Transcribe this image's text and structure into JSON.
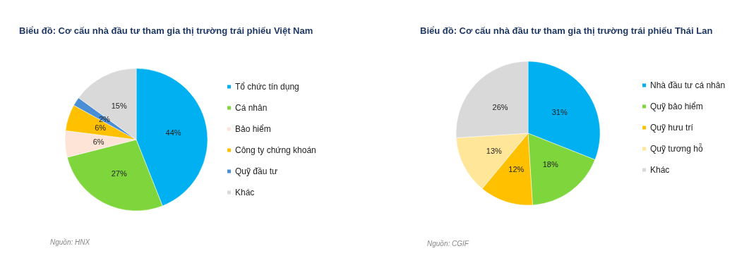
{
  "chart_data": [
    {
      "type": "pie",
      "title": "Biểu đồ: Cơ cấu nhà đầu tư tham gia thị trường trái phiếu Việt Nam",
      "categories": [
        "Tổ chức tín dụng",
        "Cá nhân",
        "Bảo hiểm",
        "Công ty chứng khoán",
        "Quỹ đầu tư",
        "Khác"
      ],
      "values": [
        44,
        27,
        6,
        6,
        2,
        15
      ],
      "value_labels": [
        "44%",
        "27%",
        "6%",
        "6%",
        "2%",
        "15%"
      ],
      "colors": [
        "#00b0f0",
        "#7ed63c",
        "#fde4d6",
        "#ffc000",
        "#4a8fd6",
        "#d9d9d9"
      ],
      "legend": "right",
      "annotations": [
        "Nguồn: HNX"
      ]
    },
    {
      "type": "pie",
      "title": "Biểu đồ: Cơ cấu nhà đầu tư tham gia thị trường trái phiếu Thái Lan",
      "categories": [
        "Nhà đầu tư cá nhân",
        "Quỹ bảo hiểm",
        "Quỹ hưu trí",
        "Quỹ tương hỗ",
        "Khác"
      ],
      "values": [
        31,
        18,
        12,
        13,
        26
      ],
      "value_labels": [
        "31%",
        "18%",
        "12%",
        "13%",
        "26%"
      ],
      "colors": [
        "#00b0f0",
        "#7ed63c",
        "#ffc000",
        "#ffe699",
        "#d9d9d9"
      ],
      "legend": "right",
      "annotations": [
        "Nguồn: CGIF"
      ]
    }
  ]
}
